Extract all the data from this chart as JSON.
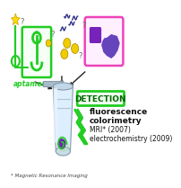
{
  "bg_color": "#ffffff",
  "detection_text": "DETECTION",
  "detection_methods": [
    "fluorescence",
    "colorimetry",
    "MRI* (2007)",
    "electrochemistry (2009)"
  ],
  "footnote": "* Magnetic Resonance Imaging",
  "aptamer_label": "aptamer",
  "aptamer_color": "#22cc22",
  "box_apt_color": "#22cc22",
  "tube_body_color": "#ddeeff",
  "tube_cap_color": "#aabbcc",
  "purple_spot_color": "#7722bb",
  "yellow_circle_color": "#eecc00",
  "blue_squiggle_color": "#333388",
  "magenta_box_color": "#ee44bb",
  "detection_box_color": "#22cc22",
  "lightning_color": "#22cc22",
  "arrow_color": "#222222",
  "star_color": "#ffdd00",
  "star_edge": "#cc9900",
  "purple_blob1": "#663399",
  "purple_blob2": "#8855cc",
  "text_color": "#111111",
  "footnote_color": "#444444"
}
